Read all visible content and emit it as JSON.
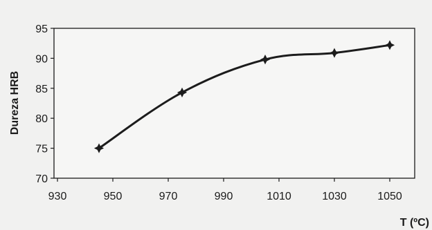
{
  "chart_data": {
    "type": "line",
    "x": [
      945,
      975,
      1005,
      1030,
      1050
    ],
    "series": [
      {
        "values": [
          75.0,
          84.3,
          89.8,
          90.9,
          92.2
        ]
      }
    ],
    "xlabel": "T (ºC)",
    "ylabel": "Dureza HRB",
    "xlim": [
      930,
      1060
    ],
    "ylim": [
      70,
      95
    ],
    "xticks": [
      "930",
      "950",
      "970",
      "990",
      "1010",
      "1030",
      "1050"
    ],
    "yticks": [
      "70",
      "75",
      "80",
      "85",
      "90",
      "95"
    ],
    "grid": false,
    "legend": "none",
    "colors": {
      "line": "#1c1c1c",
      "marker": "#1c1c1c",
      "frame": "#1a1a1a",
      "plot_background": "#f6f6f5"
    }
  }
}
